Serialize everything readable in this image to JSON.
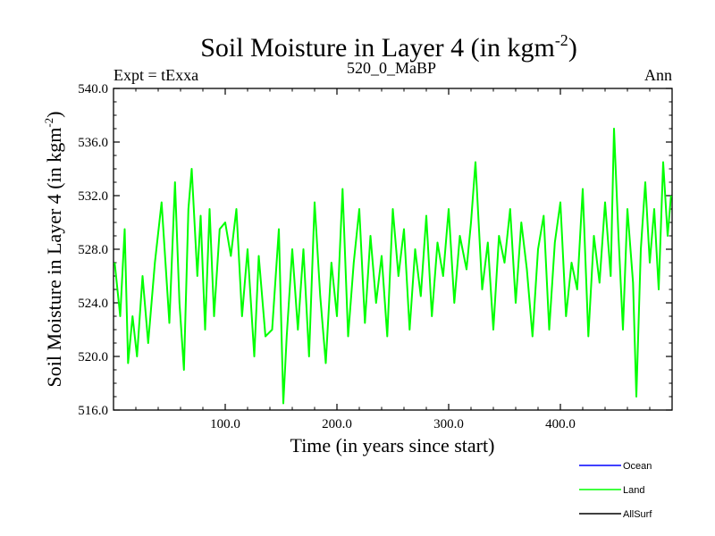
{
  "chart_data": {
    "type": "line",
    "title": "Soil Moisture in Layer 4 (in kgm",
    "title_exp": "-2",
    "title_close": ")",
    "subtitle_left": "Expt = tExxa",
    "subtitle_center": "520_0_MaBP",
    "subtitle_right": "Ann",
    "xlabel": "Time (in years since start)",
    "ylabel": "Soil Moisture in Layer 4 (in kgm",
    "ylabel_exp": "-2",
    "ylabel_close": ")",
    "xlim": [
      0,
      500
    ],
    "ylim": [
      516.0,
      540.0
    ],
    "x_ticks": [
      100,
      200,
      300,
      400
    ],
    "x_tick_labels": [
      "100.0",
      "200.0",
      "300.0",
      "400.0"
    ],
    "y_ticks": [
      516,
      520,
      524,
      528,
      532,
      536,
      540
    ],
    "y_tick_labels": [
      "516.0",
      "520.0",
      "524.0",
      "528.0",
      "532.0",
      "536.0",
      "540.0"
    ],
    "legend": [
      "Ocean",
      "Land",
      "AllSurf"
    ],
    "series": [
      {
        "name": "Land",
        "color": "#00ff00",
        "x": [
          1,
          6,
          10,
          13,
          17,
          21,
          26,
          31,
          37,
          43,
          50,
          55,
          59,
          63,
          67,
          70,
          75,
          78,
          82,
          86,
          90,
          95,
          100,
          105,
          110,
          115,
          120,
          126,
          130,
          136,
          142,
          148,
          152,
          155,
          160,
          165,
          170,
          175,
          180,
          185,
          190,
          195,
          200,
          205,
          210,
          215,
          220,
          225,
          230,
          235,
          240,
          245,
          250,
          255,
          260,
          265,
          270,
          275,
          280,
          285,
          290,
          295,
          300,
          305,
          310,
          316,
          320,
          324,
          330,
          335,
          340,
          345,
          350,
          355,
          360,
          365,
          370,
          375,
          380,
          385,
          390,
          395,
          400,
          405,
          410,
          415,
          420,
          425,
          430,
          435,
          440,
          445,
          448,
          452,
          456,
          460,
          465,
          468,
          472,
          476,
          480,
          484,
          488,
          492,
          496,
          499
        ],
        "values": [
          527.0,
          523.0,
          529.5,
          519.5,
          523.0,
          520.0,
          526.0,
          521.0,
          527.0,
          531.5,
          522.5,
          533.0,
          524.0,
          519.0,
          531.0,
          534.0,
          526.0,
          530.5,
          522.0,
          531.0,
          523.0,
          529.5,
          530.0,
          527.5,
          531.0,
          523.0,
          528.0,
          520.0,
          527.5,
          521.5,
          522.0,
          529.5,
          516.5,
          521.5,
          528.0,
          522.0,
          528.0,
          520.0,
          531.5,
          524.5,
          519.5,
          527.0,
          523.0,
          532.5,
          521.5,
          527.0,
          531.0,
          522.5,
          529.0,
          524.0,
          527.5,
          521.5,
          531.0,
          526.0,
          529.5,
          522.0,
          528.0,
          524.5,
          530.5,
          523.0,
          528.5,
          526.0,
          531.0,
          524.0,
          529.0,
          526.5,
          530.0,
          534.5,
          525.0,
          528.5,
          522.0,
          529.0,
          527.0,
          531.0,
          524.0,
          530.0,
          526.5,
          521.5,
          528.0,
          530.5,
          522.0,
          528.5,
          531.5,
          523.0,
          527.0,
          525.0,
          532.5,
          521.5,
          529.0,
          525.5,
          531.5,
          526.0,
          537.0,
          529.0,
          522.0,
          531.0,
          525.5,
          517.0,
          528.0,
          533.0,
          527.0,
          531.0,
          525.0,
          534.5,
          529.0,
          532.0
        ]
      },
      {
        "name": "Ocean",
        "color": "#0000ff",
        "values": []
      },
      {
        "name": "AllSurf",
        "color": "#000000",
        "values": []
      }
    ]
  }
}
